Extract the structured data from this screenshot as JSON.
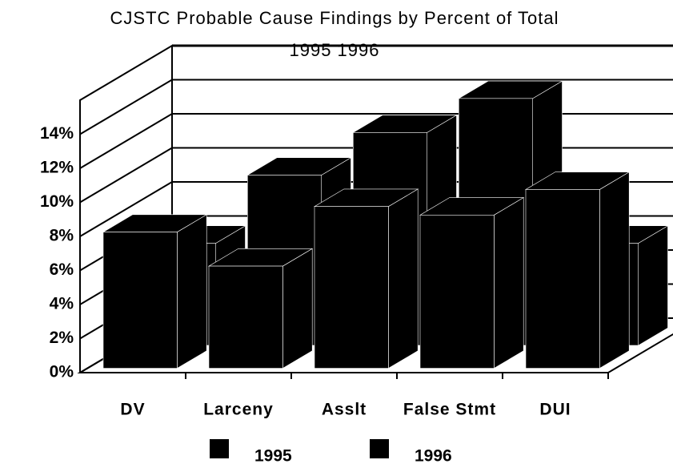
{
  "chart_data": {
    "type": "bar3d",
    "title": "CJSTC Probable Cause Findings by Percent of Total",
    "subtitle": "1995 1996",
    "categories": [
      "DV",
      "Larceny",
      "Asslt",
      "False Stmt",
      "DUI"
    ],
    "series": [
      {
        "name": "1995",
        "color": "#000000",
        "values": [
          8,
          6,
          9.5,
          9,
          10.5
        ]
      },
      {
        "name": "1996",
        "color": "#000000",
        "values": [
          6,
          10,
          12.5,
          14.5,
          6
        ]
      }
    ],
    "ylim": [
      0,
      16
    ],
    "yticks": [
      {
        "value": 0,
        "label": "0%"
      },
      {
        "value": 2,
        "label": "2%"
      },
      {
        "value": 4,
        "label": "4%"
      },
      {
        "value": 6,
        "label": "6%"
      },
      {
        "value": 8,
        "label": "8%"
      },
      {
        "value": 10,
        "label": "10%"
      },
      {
        "value": 12,
        "label": "12%"
      },
      {
        "value": 14,
        "label": "14%"
      }
    ],
    "grid": true,
    "legend": "bottom"
  }
}
